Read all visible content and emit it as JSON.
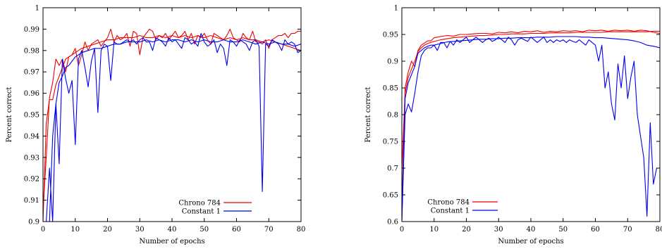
{
  "chart_data": [
    {
      "type": "line",
      "xlabel": "Number of epochs",
      "ylabel": "Percent correct",
      "xlim": [
        0,
        80
      ],
      "ylim": [
        0.9,
        1
      ],
      "xticks": [
        "0",
        "10",
        "20",
        "30",
        "40",
        "50",
        "60",
        "70",
        "80"
      ],
      "yticks": [
        "0.9",
        "0.91",
        "0.92",
        "0.93",
        "0.94",
        "0.95",
        "0.96",
        "0.97",
        "0.98",
        "0.99",
        "1"
      ],
      "grid": false,
      "legend_position": "bottom-right",
      "series": [
        {
          "name": "Chrono 784",
          "color": "#ee0000",
          "x": [
            0,
            1,
            2,
            3,
            4,
            5,
            6,
            7,
            8,
            9,
            10,
            12,
            14,
            16,
            18,
            20,
            22,
            24,
            26,
            28,
            30,
            32,
            34,
            36,
            38,
            40,
            42,
            44,
            46,
            48,
            50,
            52,
            54,
            56,
            58,
            60,
            62,
            64,
            66,
            68,
            70,
            72,
            74,
            76,
            78,
            80
          ],
          "y": [
            0.9,
            0.946,
            0.957,
            0.957,
            0.964,
            0.968,
            0.972,
            0.976,
            0.977,
            0.978,
            0.979,
            0.981,
            0.982,
            0.983,
            0.984,
            0.985,
            0.985,
            0.986,
            0.986,
            0.986,
            0.987,
            0.986,
            0.986,
            0.987,
            0.986,
            0.987,
            0.986,
            0.987,
            0.986,
            0.987,
            0.986,
            0.987,
            0.986,
            0.985,
            0.986,
            0.985,
            0.986,
            0.985,
            0.985,
            0.984,
            0.985,
            0.984,
            0.983,
            0.982,
            0.981,
            0.98
          ]
        },
        {
          "name": "Chrono 784",
          "color": "#ee0000",
          "x": [
            0,
            1,
            2,
            3,
            4,
            5,
            6,
            7,
            8,
            9,
            10,
            11,
            12,
            13,
            14,
            15,
            16,
            17,
            18,
            19,
            20,
            21,
            22,
            23,
            24,
            25,
            26,
            27,
            28,
            29,
            30,
            31,
            32,
            33,
            34,
            35,
            36,
            37,
            38,
            39,
            40,
            41,
            42,
            43,
            44,
            45,
            46,
            47,
            48,
            49,
            50,
            51,
            52,
            53,
            54,
            55,
            56,
            57,
            58,
            59,
            60,
            61,
            62,
            63,
            64,
            65,
            66,
            67,
            68,
            69,
            70,
            71,
            72,
            73,
            74,
            75,
            76,
            77,
            78,
            79,
            80
          ],
          "y": [
            0.905,
            0.93,
            0.958,
            0.965,
            0.976,
            0.973,
            0.976,
            0.97,
            0.977,
            0.978,
            0.981,
            0.973,
            0.978,
            0.984,
            0.98,
            0.983,
            0.984,
            0.985,
            0.982,
            0.984,
            0.986,
            0.99,
            0.984,
            0.987,
            0.985,
            0.986,
            0.988,
            0.982,
            0.989,
            0.988,
            0.978,
            0.986,
            0.988,
            0.99,
            0.989,
            0.985,
            0.987,
            0.986,
            0.988,
            0.985,
            0.987,
            0.989,
            0.986,
            0.987,
            0.989,
            0.985,
            0.988,
            0.983,
            0.987,
            0.986,
            0.988,
            0.985,
            0.983,
            0.988,
            0.987,
            0.986,
            0.985,
            0.987,
            0.99,
            0.986,
            0.985,
            0.984,
            0.988,
            0.986,
            0.985,
            0.989,
            0.984,
            0.984,
            0.983,
            0.985,
            0.981,
            0.985,
            0.986,
            0.987,
            0.987,
            0.988,
            0.986,
            0.988,
            0.988,
            0.989,
            0.989
          ]
        },
        {
          "name": "Constant 1",
          "color": "#0000ee",
          "x": [
            0,
            1,
            2,
            3,
            4,
            5,
            6,
            7,
            8,
            9,
            10,
            12,
            14,
            16,
            18,
            20,
            22,
            24,
            26,
            28,
            30,
            32,
            34,
            36,
            38,
            40,
            42,
            44,
            46,
            48,
            50,
            52,
            54,
            56,
            58,
            60,
            62,
            64,
            66,
            68,
            70,
            72,
            74,
            76,
            78,
            80
          ],
          "y": [
            0.9,
            0.9,
            0.9,
            0.94,
            0.955,
            0.965,
            0.968,
            0.972,
            0.973,
            0.975,
            0.977,
            0.979,
            0.98,
            0.981,
            0.981,
            0.982,
            0.983,
            0.983,
            0.984,
            0.984,
            0.984,
            0.985,
            0.984,
            0.985,
            0.984,
            0.985,
            0.985,
            0.984,
            0.985,
            0.984,
            0.985,
            0.984,
            0.984,
            0.985,
            0.984,
            0.984,
            0.985,
            0.984,
            0.983,
            0.984,
            0.983,
            0.984,
            0.983,
            0.983,
            0.982,
            0.983
          ]
        },
        {
          "name": "Constant 1",
          "color": "#0000ee",
          "x": [
            0,
            1,
            2,
            3,
            4,
            5,
            6,
            7,
            8,
            9,
            10,
            11,
            12,
            13,
            14,
            15,
            16,
            17,
            18,
            19,
            20,
            21,
            22,
            23,
            24,
            25,
            26,
            27,
            28,
            29,
            30,
            31,
            32,
            33,
            34,
            35,
            36,
            37,
            38,
            39,
            40,
            41,
            42,
            43,
            44,
            45,
            46,
            47,
            48,
            49,
            50,
            51,
            52,
            53,
            54,
            55,
            56,
            57,
            58,
            59,
            60,
            61,
            62,
            63,
            64,
            65,
            66,
            67,
            68,
            69,
            70,
            71,
            72,
            73,
            74,
            75,
            76,
            77,
            78,
            79,
            80
          ],
          "y": [
            0.9,
            0.9,
            0.925,
            0.9,
            0.955,
            0.927,
            0.976,
            0.967,
            0.96,
            0.966,
            0.936,
            0.976,
            0.98,
            0.972,
            0.963,
            0.975,
            0.981,
            0.951,
            0.98,
            0.983,
            0.982,
            0.966,
            0.984,
            0.983,
            0.983,
            0.984,
            0.985,
            0.984,
            0.985,
            0.983,
            0.985,
            0.986,
            0.984,
            0.984,
            0.98,
            0.986,
            0.985,
            0.984,
            0.982,
            0.986,
            0.984,
            0.985,
            0.983,
            0.981,
            0.986,
            0.985,
            0.983,
            0.984,
            0.982,
            0.988,
            0.984,
            0.982,
            0.983,
            0.985,
            0.979,
            0.983,
            0.981,
            0.973,
            0.985,
            0.984,
            0.982,
            0.985,
            0.984,
            0.983,
            0.98,
            0.984,
            0.985,
            0.982,
            0.914,
            0.983,
            0.982,
            0.985,
            0.984,
            0.983,
            0.98,
            0.985,
            0.983,
            0.984,
            0.983,
            0.979,
            0.98
          ]
        }
      ]
    },
    {
      "type": "line",
      "xlabel": "Number of epochs",
      "ylabel": "Percent correct",
      "xlim": [
        0,
        80
      ],
      "ylim": [
        0.6,
        1
      ],
      "xticks": [
        "0",
        "10",
        "20",
        "30",
        "40",
        "50",
        "60",
        "70",
        "80"
      ],
      "yticks": [
        "0.6",
        "0.65",
        "0.7",
        "0.75",
        "0.8",
        "0.85",
        "0.9",
        "0.95",
        "1"
      ],
      "grid": false,
      "legend_position": "bottom-left",
      "series": [
        {
          "name": "Chrono 784",
          "color": "#ee0000",
          "x": [
            0,
            1,
            2,
            3,
            4,
            5,
            6,
            7,
            8,
            9,
            10,
            12,
            14,
            16,
            18,
            20,
            22,
            24,
            26,
            28,
            30,
            32,
            34,
            36,
            38,
            40,
            42,
            44,
            46,
            48,
            50,
            52,
            54,
            56,
            58,
            60,
            62,
            64,
            66,
            68,
            70,
            72,
            74,
            76,
            78,
            80
          ],
          "y": [
            0.7,
            0.84,
            0.87,
            0.885,
            0.9,
            0.918,
            0.925,
            0.93,
            0.933,
            0.935,
            0.937,
            0.94,
            0.942,
            0.944,
            0.945,
            0.946,
            0.947,
            0.948,
            0.948,
            0.949,
            0.95,
            0.95,
            0.951,
            0.951,
            0.951,
            0.952,
            0.952,
            0.952,
            0.953,
            0.953,
            0.953,
            0.953,
            0.954,
            0.954,
            0.954,
            0.954,
            0.954,
            0.955,
            0.955,
            0.955,
            0.955,
            0.955,
            0.955,
            0.955,
            0.956,
            0.956
          ]
        },
        {
          "name": "Chrono 784",
          "color": "#ee0000",
          "x": [
            0,
            1,
            2,
            3,
            4,
            5,
            6,
            7,
            8,
            9,
            10,
            12,
            14,
            16,
            18,
            20,
            22,
            24,
            26,
            28,
            30,
            32,
            34,
            36,
            38,
            40,
            42,
            44,
            46,
            48,
            50,
            52,
            54,
            56,
            58,
            60,
            62,
            64,
            66,
            68,
            70,
            72,
            74,
            76,
            78,
            80
          ],
          "y": [
            0.62,
            0.85,
            0.88,
            0.9,
            0.89,
            0.92,
            0.93,
            0.934,
            0.938,
            0.938,
            0.944,
            0.946,
            0.948,
            0.947,
            0.95,
            0.95,
            0.951,
            0.952,
            0.952,
            0.951,
            0.954,
            0.953,
            0.955,
            0.953,
            0.956,
            0.955,
            0.957,
            0.954,
            0.956,
            0.955,
            0.957,
            0.956,
            0.957,
            0.955,
            0.958,
            0.957,
            0.958,
            0.956,
            0.958,
            0.957,
            0.958,
            0.956,
            0.958,
            0.957,
            0.954,
            0.952
          ]
        },
        {
          "name": "Constant 1",
          "color": "#0000ee",
          "x": [
            0,
            1,
            2,
            3,
            4,
            5,
            6,
            7,
            8,
            9,
            10,
            12,
            14,
            16,
            18,
            20,
            22,
            24,
            26,
            28,
            30,
            32,
            34,
            36,
            38,
            40,
            42,
            44,
            46,
            48,
            50,
            52,
            54,
            56,
            58,
            60,
            62,
            64,
            66,
            68,
            70,
            72,
            74,
            76,
            78,
            80
          ],
          "y": [
            0.6,
            0.83,
            0.86,
            0.875,
            0.89,
            0.915,
            0.92,
            0.925,
            0.928,
            0.93,
            0.93,
            0.933,
            0.936,
            0.937,
            0.938,
            0.939,
            0.94,
            0.941,
            0.941,
            0.942,
            0.942,
            0.943,
            0.943,
            0.944,
            0.944,
            0.944,
            0.945,
            0.945,
            0.945,
            0.946,
            0.946,
            0.946,
            0.946,
            0.945,
            0.945,
            0.944,
            0.944,
            0.943,
            0.942,
            0.941,
            0.94,
            0.938,
            0.935,
            0.93,
            0.928,
            0.925
          ]
        },
        {
          "name": "Constant 1",
          "color": "#0000ee",
          "x": [
            0,
            1,
            2,
            3,
            4,
            5,
            6,
            7,
            8,
            9,
            10,
            11,
            12,
            13,
            14,
            15,
            16,
            17,
            18,
            19,
            20,
            21,
            22,
            23,
            24,
            25,
            26,
            27,
            28,
            29,
            30,
            31,
            32,
            33,
            34,
            35,
            36,
            37,
            38,
            39,
            40,
            41,
            42,
            43,
            44,
            45,
            46,
            47,
            48,
            49,
            50,
            51,
            52,
            53,
            54,
            55,
            56,
            57,
            58,
            59,
            60,
            61,
            62,
            63,
            64,
            65,
            66,
            67,
            68,
            69,
            70,
            71,
            72,
            73,
            74,
            75,
            76,
            77,
            78,
            79,
            80
          ],
          "y": [
            0.6,
            0.8,
            0.82,
            0.805,
            0.84,
            0.88,
            0.91,
            0.92,
            0.925,
            0.925,
            0.93,
            0.92,
            0.935,
            0.935,
            0.925,
            0.937,
            0.93,
            0.94,
            0.935,
            0.94,
            0.945,
            0.935,
            0.94,
            0.945,
            0.94,
            0.935,
            0.94,
            0.943,
            0.937,
            0.94,
            0.945,
            0.94,
            0.935,
            0.945,
            0.94,
            0.93,
            0.94,
            0.943,
            0.94,
            0.937,
            0.945,
            0.94,
            0.935,
            0.94,
            0.945,
            0.935,
            0.94,
            0.935,
            0.94,
            0.937,
            0.94,
            0.935,
            0.94,
            0.937,
            0.935,
            0.94,
            0.935,
            0.93,
            0.94,
            0.935,
            0.93,
            0.9,
            0.93,
            0.85,
            0.88,
            0.82,
            0.79,
            0.895,
            0.85,
            0.91,
            0.83,
            0.87,
            0.9,
            0.8,
            0.76,
            0.72,
            0.61,
            0.785,
            0.67,
            0.7,
            0.7
          ]
        }
      ]
    }
  ]
}
